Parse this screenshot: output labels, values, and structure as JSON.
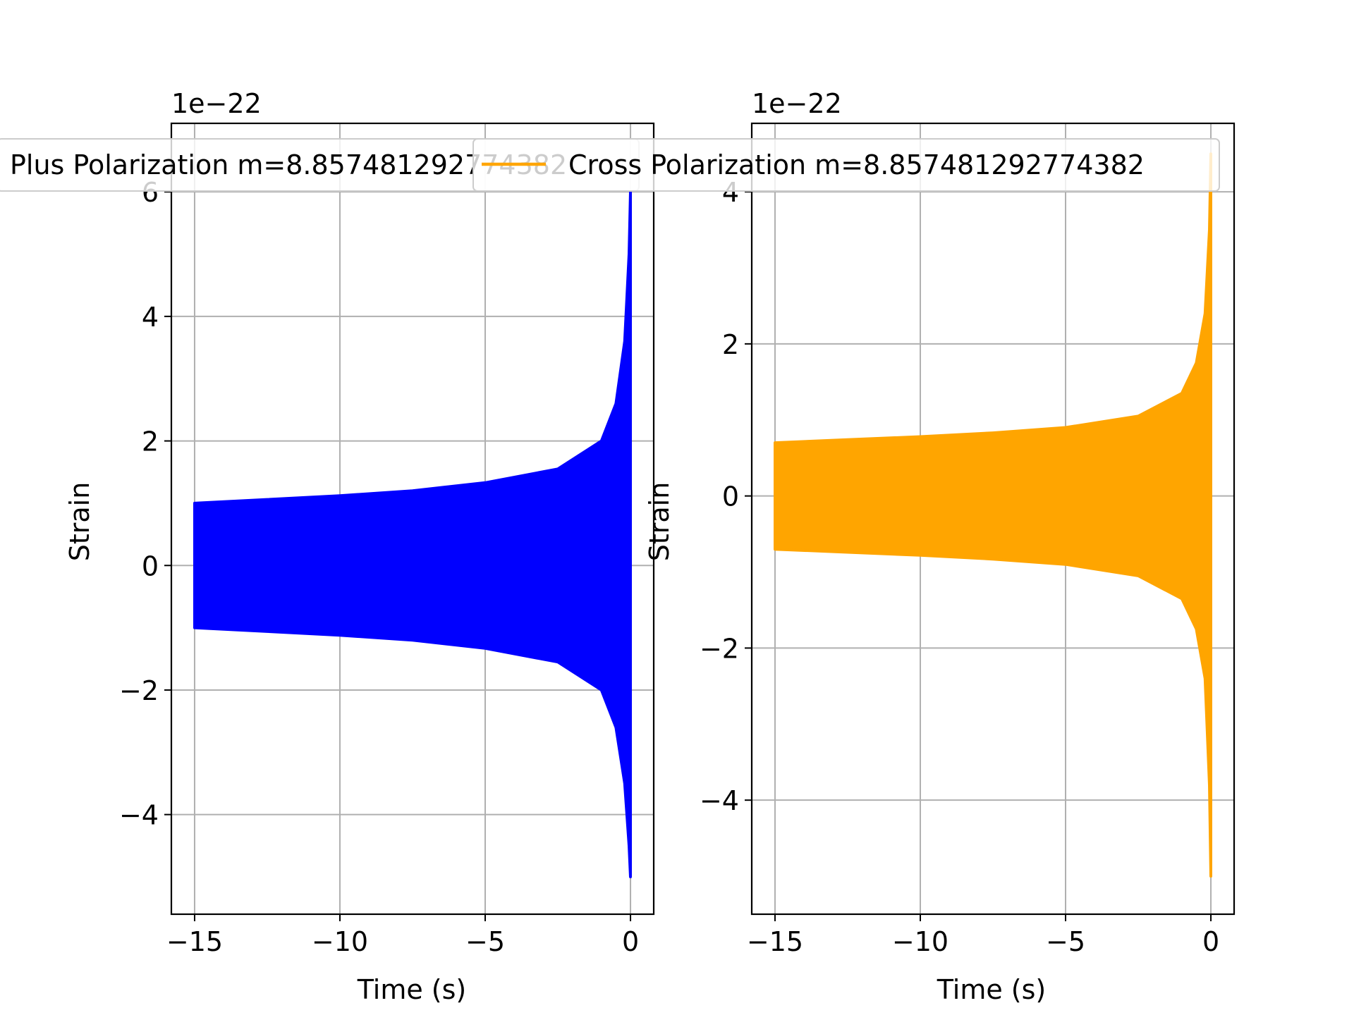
{
  "chart_data": [
    {
      "type": "line",
      "title": "",
      "xlabel": "Time (s)",
      "ylabel": "Strain",
      "offset_text": "1e−22",
      "xlim": [
        -15.8,
        0.8
      ],
      "ylim": [
        -5.6,
        7.1
      ],
      "xticks": [
        -15,
        -10,
        -5,
        0
      ],
      "xtick_labels": [
        "−15",
        "−10",
        "−5",
        "0"
      ],
      "yticks": [
        -4,
        -2,
        0,
        2,
        4,
        6
      ],
      "ytick_labels": [
        "−4",
        "−2",
        "0",
        "2",
        "4",
        "6"
      ],
      "grid": true,
      "legend_position": "top",
      "series": [
        {
          "name": "Plus Polarization m=8.857481292774382",
          "color": "#0000ff",
          "envelope": {
            "t": [
              -15.0,
              -12.5,
              -10.0,
              -7.5,
              -5.0,
              -2.5,
              -1.0,
              -0.5,
              -0.2,
              -0.05,
              0.0
            ],
            "upper": [
              1.0,
              1.06,
              1.12,
              1.2,
              1.33,
              1.55,
              2.0,
              2.6,
              3.6,
              5.0,
              6.0
            ],
            "lower": [
              -1.0,
              -1.06,
              -1.12,
              -1.2,
              -1.33,
              -1.55,
              -2.0,
              -2.6,
              -3.5,
              -4.5,
              -5.0
            ]
          }
        }
      ]
    },
    {
      "type": "line",
      "title": "",
      "xlabel": "Time (s)",
      "ylabel": "Strain",
      "offset_text": "1e−22",
      "xlim": [
        -15.8,
        0.8
      ],
      "ylim": [
        -5.5,
        4.9
      ],
      "xticks": [
        -15,
        -10,
        -5,
        0
      ],
      "xtick_labels": [
        "−15",
        "−10",
        "−5",
        "0"
      ],
      "yticks": [
        -4,
        -2,
        0,
        2,
        4
      ],
      "ytick_labels": [
        "−4",
        "−2",
        "0",
        "2",
        "4"
      ],
      "grid": true,
      "legend_position": "top",
      "series": [
        {
          "name": "Cross Polarization m=8.857481292774382",
          "color": "#ffa500",
          "envelope": {
            "t": [
              -15.0,
              -12.5,
              -10.0,
              -7.5,
              -5.0,
              -2.5,
              -1.0,
              -0.5,
              -0.2,
              -0.05,
              0.0
            ],
            "upper": [
              0.7,
              0.74,
              0.78,
              0.83,
              0.9,
              1.05,
              1.35,
              1.75,
              2.4,
              3.5,
              4.5
            ],
            "lower": [
              -0.7,
              -0.74,
              -0.78,
              -0.83,
              -0.9,
              -1.05,
              -1.35,
              -1.75,
              -2.4,
              -3.8,
              -5.0
            ]
          }
        }
      ]
    }
  ]
}
